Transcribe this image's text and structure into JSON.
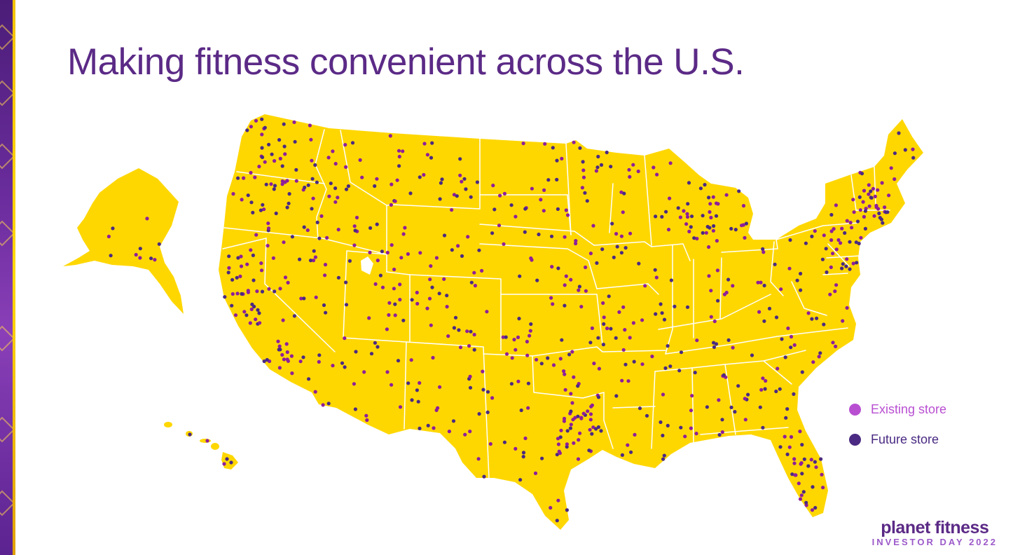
{
  "slide": {
    "title": "Making fitness convenient across the U.S."
  },
  "legend": {
    "existing_label": "Existing store",
    "future_label": "Future store"
  },
  "brand": {
    "name": "planet fitness",
    "subtitle": "INVESTOR DAY 2022"
  },
  "colors": {
    "title": "#5b2a86",
    "map_fill": "#ffd700",
    "state_border": "#ffffff",
    "existing_store": "#b84fd1",
    "future_store": "#4a2a82",
    "dot_primary": "#8e1f9a",
    "dot_secondary": "#4a2a82"
  },
  "icons": {
    "existing_swatch": "circle-existing-store-icon",
    "future_swatch": "circle-future-store-icon",
    "logo": "planet-fitness-logo"
  }
}
